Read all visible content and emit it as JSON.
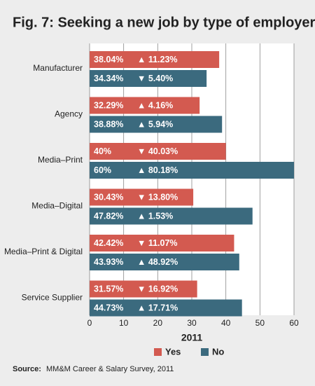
{
  "chart_data": {
    "type": "bar",
    "orientation": "horizontal",
    "title": "Fig. 7: Seeking a new job by type of employer",
    "categories": [
      "Manufacturer",
      "Agency",
      "Media–Print",
      "Media–Digital",
      "Media–Print & Digital",
      "Service Supplier"
    ],
    "series": [
      {
        "name": "Yes",
        "color": "#d35a50",
        "values": [
          38.04,
          32.29,
          40,
          30.43,
          42.42,
          31.57
        ],
        "value_labels": [
          "38.04%",
          "32.29%",
          "40%",
          "30.43%",
          "42.42%",
          "31.57%"
        ],
        "change_labels": [
          "▲ 11.23%",
          "▲ 4.16%",
          "▼ 40.03%",
          "▼ 13.80%",
          "▼ 11.07%",
          "▼ 16.92%"
        ]
      },
      {
        "name": "No",
        "color": "#3b6a7e",
        "values": [
          34.34,
          38.88,
          60,
          47.82,
          43.93,
          44.73
        ],
        "value_labels": [
          "34.34%",
          "38.88%",
          "60%",
          "47.82%",
          "43.93%",
          "44.73%"
        ],
        "change_labels": [
          "▼ 5.40%",
          "▲ 5.94%",
          "▲ 80.18%",
          "▲ 1.53%",
          "▲ 48.92%",
          "▲ 17.71%"
        ]
      }
    ],
    "xlabel": "2011",
    "xlim": [
      0,
      60
    ],
    "xticks": [
      0,
      10,
      20,
      30,
      40,
      50,
      60
    ],
    "grid": true,
    "source_label": "Source:",
    "source_text": "MM&M Career & Salary Survey, 2011"
  }
}
